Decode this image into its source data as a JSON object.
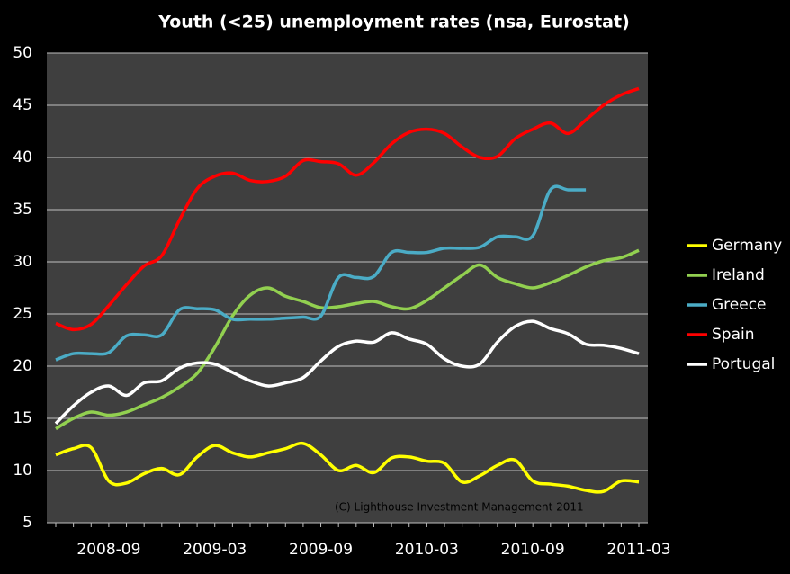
{
  "chart_data": {
    "type": "line",
    "title": "Youth (<25) unemployment rates (nsa, Eurostat)",
    "annotation": "(C) Lighthouse Investment Management 2011",
    "categories": [
      null,
      null,
      null,
      "2008-09",
      null,
      null,
      null,
      null,
      null,
      "2009-03",
      null,
      null,
      null,
      null,
      null,
      "2009-09",
      null,
      null,
      null,
      null,
      null,
      "2010-03",
      null,
      null,
      null,
      null,
      null,
      "2010-09",
      null,
      null,
      null,
      null,
      null,
      "2011-03"
    ],
    "ylim": [
      5,
      50
    ],
    "yticks": [
      5,
      10,
      15,
      20,
      25,
      30,
      35,
      40,
      45,
      50
    ],
    "grid": true,
    "legend": "right",
    "series": [
      {
        "name": "Germany",
        "color": "#ffff00",
        "values": [
          11.5,
          12.1,
          12.2,
          9.0,
          8.8,
          9.7,
          10.2,
          9.6,
          11.3,
          12.4,
          11.7,
          11.3,
          11.7,
          12.1,
          12.6,
          11.5,
          10.0,
          10.5,
          9.8,
          11.2,
          11.3,
          10.9,
          10.7,
          8.9,
          9.5,
          10.5,
          11.0,
          9.0,
          8.7,
          8.5,
          8.1,
          8.0,
          9.0,
          8.9
        ]
      },
      {
        "name": "Ireland",
        "color": "#92d050",
        "values": [
          14.0,
          15.0,
          15.6,
          15.3,
          15.6,
          16.3,
          17.0,
          18.0,
          19.3,
          21.8,
          24.8,
          26.8,
          27.5,
          26.7,
          26.2,
          25.6,
          25.7,
          26.0,
          26.2,
          25.7,
          25.5,
          26.3,
          27.5,
          28.7,
          29.7,
          28.5,
          27.9,
          27.5,
          28.0,
          28.7,
          29.5,
          30.1,
          30.4,
          31.1
        ]
      },
      {
        "name": "Greece",
        "color": "#4bacc6",
        "values": [
          20.6,
          21.2,
          21.2,
          21.3,
          22.9,
          23.0,
          23.0,
          25.4,
          25.5,
          25.4,
          24.5,
          24.5,
          24.5,
          24.6,
          24.7,
          24.8,
          28.5,
          28.5,
          28.6,
          30.9,
          30.9,
          30.9,
          31.3,
          31.3,
          31.4,
          32.4,
          32.4,
          32.5,
          36.9,
          36.9,
          36.9,
          null,
          null,
          null
        ]
      },
      {
        "name": "Spain",
        "color": "#ff0000",
        "values": [
          24.1,
          23.5,
          24.0,
          25.8,
          27.8,
          29.6,
          30.6,
          34.0,
          37.0,
          38.2,
          38.5,
          37.8,
          37.7,
          38.2,
          39.7,
          39.6,
          39.4,
          38.3,
          39.5,
          41.3,
          42.4,
          42.7,
          42.3,
          41.0,
          40.0,
          40.1,
          41.8,
          42.7,
          43.3,
          42.3,
          43.6,
          45.0,
          46.0,
          46.6
        ]
      },
      {
        "name": "Portugal",
        "color": "#ffffff",
        "values": [
          14.5,
          16.2,
          17.5,
          18.1,
          17.2,
          18.4,
          18.6,
          19.8,
          20.3,
          20.2,
          19.4,
          18.6,
          18.1,
          18.4,
          18.9,
          20.5,
          21.9,
          22.4,
          22.3,
          23.2,
          22.6,
          22.1,
          20.7,
          20.0,
          20.2,
          22.3,
          23.8,
          24.3,
          23.6,
          23.1,
          22.1,
          22.0,
          21.7,
          21.2
        ]
      }
    ]
  }
}
